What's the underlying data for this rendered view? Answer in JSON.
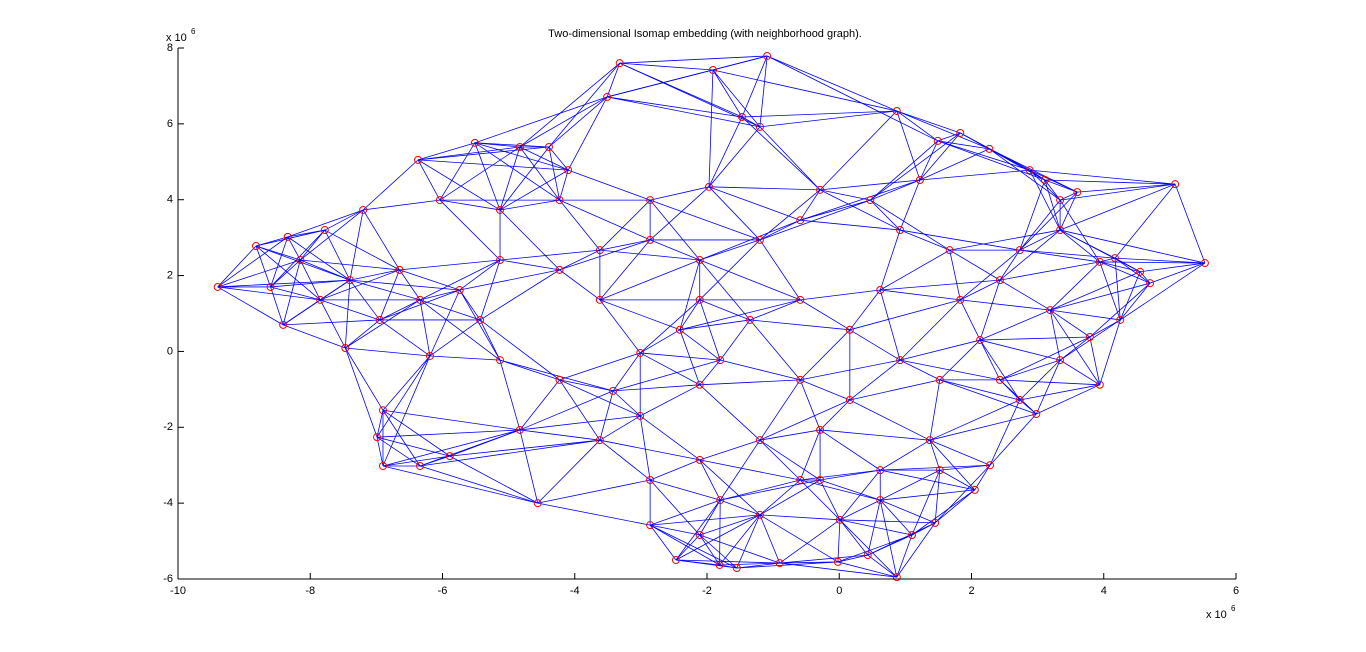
{
  "chart_data": {
    "type": "scatter",
    "title": "Two-dimensional Isomap embedding (with neighborhood graph).",
    "x_multiplier": {
      "base": "x 10",
      "exp": "6"
    },
    "y_multiplier": {
      "base": "x 10",
      "exp": "6"
    },
    "xlim": [
      -10,
      6
    ],
    "xticks": [
      -10,
      -8,
      -6,
      -4,
      -2,
      0,
      2,
      4,
      6
    ],
    "ylim": [
      -6,
      8
    ],
    "yticks": [
      -6,
      -4,
      -2,
      0,
      2,
      4,
      6,
      8
    ],
    "marker_color": "#ff0000",
    "edge_color": "#0000ff",
    "neighbors": 7,
    "x": [
      -1.09,
      -3.32,
      -1.91,
      -3.51,
      -1.47,
      -1.2,
      0.87,
      1.83,
      1.49,
      2.27,
      -5.51,
      -4.83,
      -4.39,
      -6.37,
      -4.1,
      2.88,
      3.11,
      5.08,
      3.6,
      3.34,
      -1.97,
      -7.2,
      -7.78,
      -8.34,
      -8.82,
      5.53,
      3.94,
      4.17,
      4.55,
      4.7,
      -9.4,
      -8.6,
      -8.41,
      -7.47,
      -6.19,
      4.25,
      3.79,
      3.94,
      -3.01,
      -3.42,
      -2.11,
      -3.01,
      -6.9,
      -6.99,
      -4.83,
      -5.89,
      -6.9,
      -6.34,
      -4.56,
      2.98,
      2.73,
      2.28,
      2.05,
      1.45,
      1.1,
      0.87,
      0.43,
      -0.02,
      -0.9,
      -1.55,
      -1.81,
      -2.47,
      -2.11,
      -2.86,
      -1.2,
      0.01,
      -0.59,
      0.62,
      1.37,
      -1.2,
      -2.11,
      -0.29,
      1.83,
      2.43,
      1.67,
      0.92,
      0.62,
      2.13,
      3.19,
      2.73,
      3.34,
      1.22,
      0.47,
      -0.29,
      -1.2,
      -2.11,
      -2.86,
      -2.41,
      -1.8,
      -2.11,
      -1.35,
      -0.59,
      0.16,
      0.92,
      0.16,
      -0.59,
      -4.23,
      -3.62,
      -5.13,
      -5.74,
      -6.65,
      -7.4,
      -8.15,
      -7.85,
      -6.95,
      -6.34,
      -5.43,
      -5.13,
      -6.04,
      -4.23,
      -3.62,
      -2.86,
      -0.59,
      1.52,
      2.43,
      3.34,
      0.62,
      -0.29,
      -1.8,
      -2.86,
      1.52,
      -3.62,
      -4.23,
      -5.13
    ],
    "y": [
      7.79,
      7.6,
      7.42,
      6.71,
      6.18,
      5.92,
      6.34,
      5.76,
      5.55,
      5.34,
      5.5,
      5.39,
      5.39,
      5.05,
      4.78,
      4.78,
      4.52,
      4.41,
      4.2,
      3.99,
      4.34,
      3.73,
      3.2,
      3.02,
      2.78,
      2.33,
      2.36,
      2.46,
      2.1,
      1.8,
      1.7,
      1.7,
      0.7,
      0.09,
      -0.12,
      0.83,
      0.38,
      -0.88,
      -0.04,
      -1.04,
      -0.88,
      -1.7,
      -1.55,
      -2.26,
      -2.07,
      -2.76,
      -3.02,
      -3.02,
      -4.0,
      -1.65,
      -1.28,
      -3.0,
      -3.65,
      -4.52,
      -4.84,
      -5.95,
      -5.37,
      -5.55,
      -5.58,
      -5.71,
      -5.63,
      -5.5,
      -4.84,
      -4.58,
      -4.31,
      -4.44,
      -3.39,
      -3.13,
      -2.34,
      -2.34,
      -2.86,
      -2.07,
      1.36,
      1.88,
      2.67,
      3.2,
      1.62,
      0.3,
      1.09,
      2.67,
      3.2,
      4.52,
      3.99,
      4.26,
      2.94,
      2.41,
      2.94,
      0.57,
      -0.23,
      1.36,
      0.83,
      1.36,
      0.57,
      -0.23,
      -1.28,
      -0.75,
      2.15,
      2.67,
      2.41,
      1.62,
      2.15,
      1.88,
      2.41,
      1.36,
      0.83,
      1.36,
      0.83,
      3.73,
      3.99,
      3.99,
      1.36,
      3.99,
      3.46,
      -0.75,
      -0.75,
      -0.23,
      -3.92,
      -3.39,
      -3.92,
      -3.39,
      -3.13,
      -2.34,
      -0.75,
      -0.23
    ]
  }
}
